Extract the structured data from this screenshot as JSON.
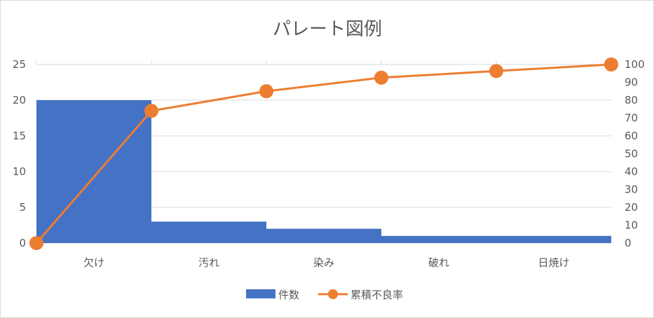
{
  "chart_data": {
    "type": "bar",
    "title": "パレート図例",
    "categories": [
      "欠け",
      "汚れ",
      "染み",
      "破れ",
      "日焼け"
    ],
    "series": [
      {
        "name": "件数",
        "type": "bar",
        "axis": "left",
        "color": "#4472c4",
        "values": [
          20,
          3,
          2,
          1,
          1
        ]
      },
      {
        "name": "累積不良率",
        "type": "line",
        "axis": "right",
        "color": "#ed7d31",
        "x": [
          0,
          1,
          2,
          3,
          4,
          5
        ],
        "values": [
          0,
          74,
          85,
          92.6,
          96.3,
          100
        ]
      }
    ],
    "y_left": {
      "ylim": [
        0,
        25
      ],
      "ticks": [
        "0",
        "5",
        "10",
        "15",
        "20",
        "25"
      ]
    },
    "y_right": {
      "ylim": [
        0,
        100
      ],
      "ticks": [
        "0",
        "10",
        "20",
        "30",
        "40",
        "50",
        "60",
        "70",
        "80",
        "90",
        "100"
      ]
    },
    "grid": true,
    "legend_position": "bottom",
    "colors": {
      "gridline": "#d9d9d9",
      "text": "#595959",
      "border": "#d9d9d9"
    }
  }
}
